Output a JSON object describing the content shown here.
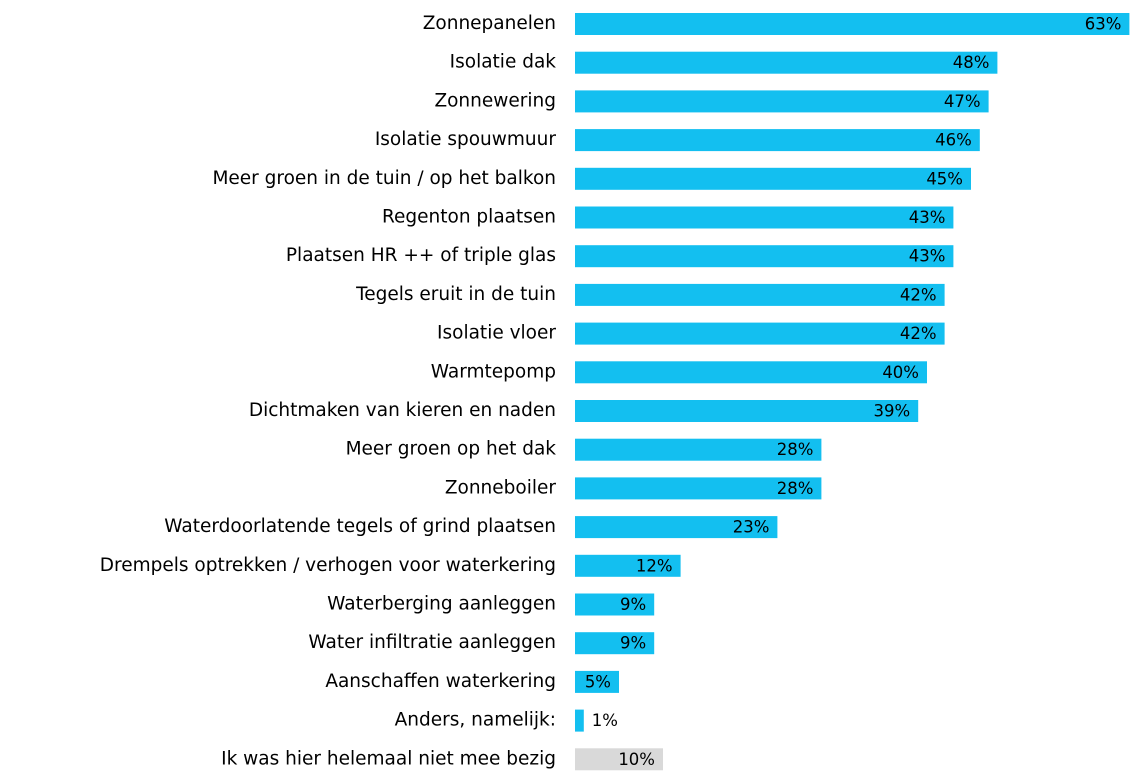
{
  "chart_data": {
    "type": "barh",
    "categories": [
      "Zonnepanelen",
      "Isolatie dak",
      "Zonnewering",
      "Isolatie spouwmuur",
      "Meer groen in de tuin / op het balkon",
      "Regenton plaatsen",
      "Plaatsen HR ++ of triple glas",
      "Tegels eruit in de tuin",
      "Isolatie vloer",
      "Warmtepomp",
      "Dichtmaken van kieren en naden",
      "Meer groen op het dak",
      "Zonneboiler",
      "Waterdoorlatende tegels of grind plaatsen",
      "Drempels optrekken / verhogen voor waterkering",
      "Waterberging aanleggen",
      "Water infiltratie aanleggen",
      "Aanschaffen waterkering",
      "Anders, namelijk:",
      "Ik was hier helemaal niet mee bezig"
    ],
    "values": [
      63,
      48,
      47,
      46,
      45,
      43,
      43,
      42,
      42,
      40,
      39,
      28,
      28,
      23,
      12,
      9,
      9,
      5,
      1,
      10
    ],
    "value_labels": [
      "63%",
      "48%",
      "47%",
      "46%",
      "45%",
      "43%",
      "43%",
      "42%",
      "42%",
      "40%",
      "39%",
      "28%",
      "28%",
      "23%",
      "12%",
      "9%",
      "9%",
      "5%",
      "1%",
      "10%"
    ],
    "colors": [
      "#13bff0",
      "#13bff0",
      "#13bff0",
      "#13bff0",
      "#13bff0",
      "#13bff0",
      "#13bff0",
      "#13bff0",
      "#13bff0",
      "#13bff0",
      "#13bff0",
      "#13bff0",
      "#13bff0",
      "#13bff0",
      "#13bff0",
      "#13bff0",
      "#13bff0",
      "#13bff0",
      "#13bff0",
      "#d9d9d9"
    ]
  }
}
